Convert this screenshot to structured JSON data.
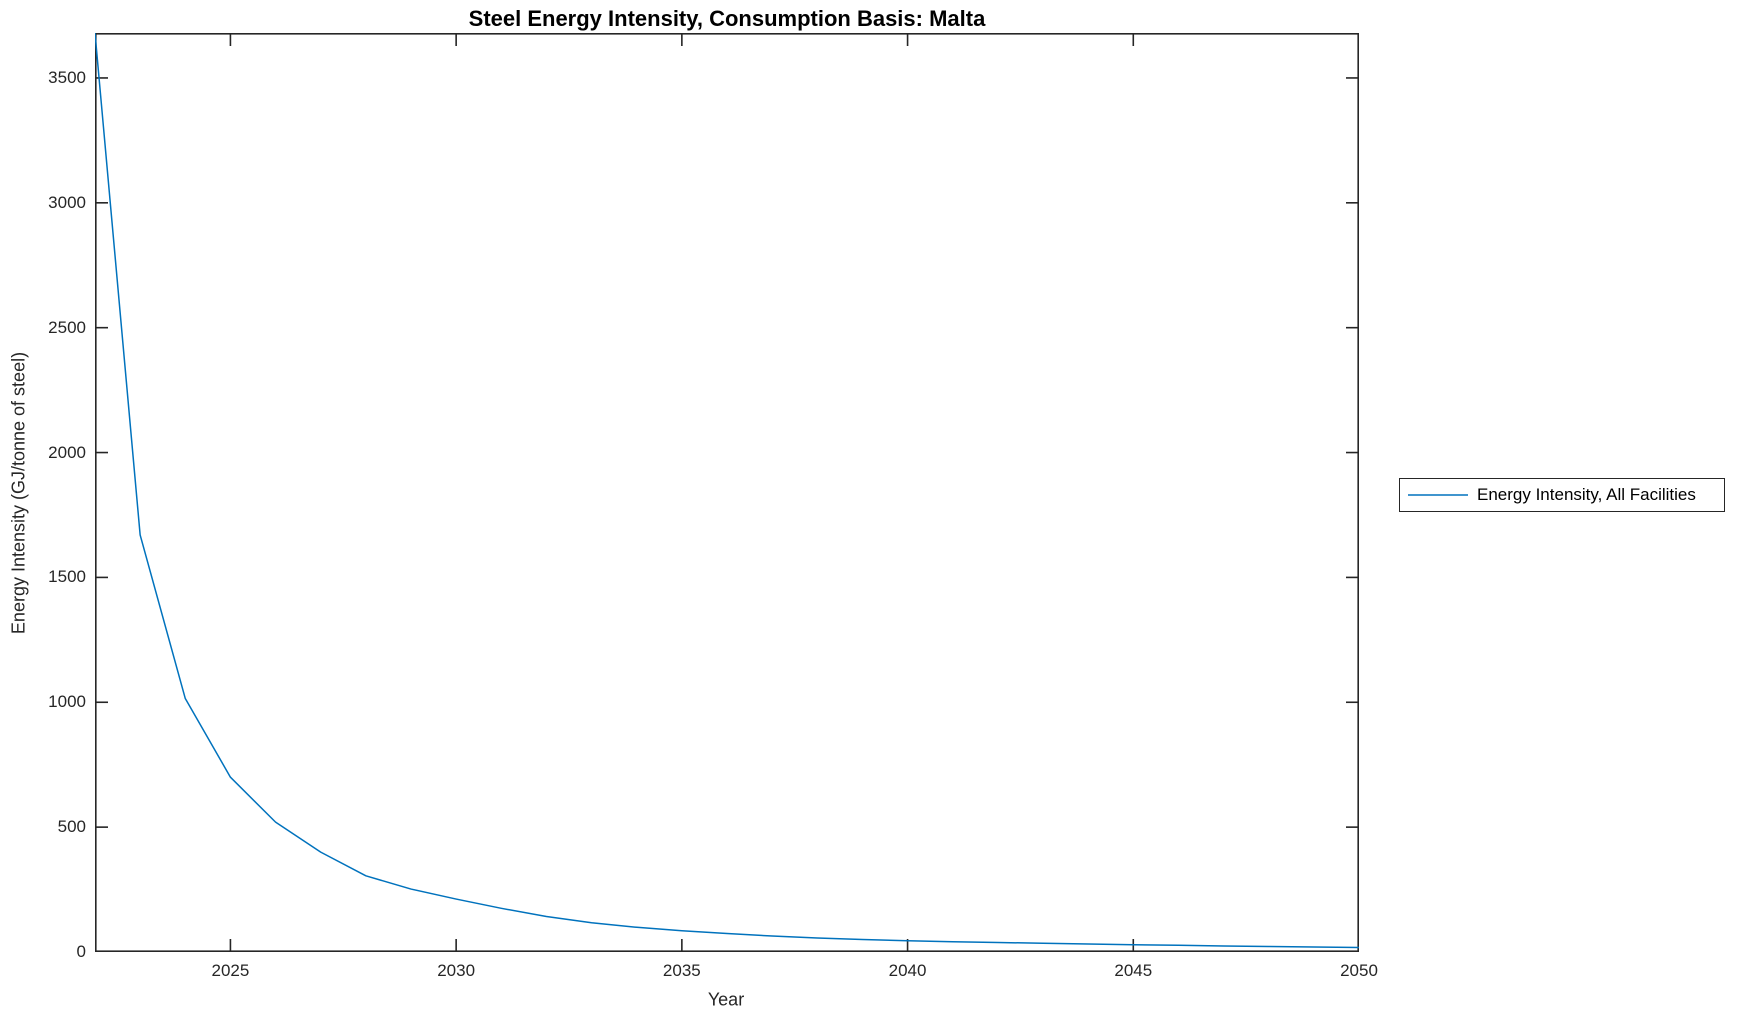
{
  "colors": {
    "line": "#0072BD",
    "axis": "#262626",
    "tick_text": "#262626",
    "title_text": "#000000",
    "background": "#ffffff"
  },
  "legend": {
    "label": "Energy Intensity, All Facilities",
    "position": "right-outside"
  },
  "chart_data": {
    "type": "line",
    "title": "Steel Energy Intensity, Consumption Basis: Malta",
    "xlabel": "Year",
    "ylabel": "Energy Intensity (GJ/tonne of steel)",
    "xlim": [
      2022,
      2050
    ],
    "ylim": [
      0,
      3680
    ],
    "xticks": [
      2025,
      2030,
      2035,
      2040,
      2045,
      2050
    ],
    "yticks": [
      0,
      500,
      1000,
      1500,
      2000,
      2500,
      3000,
      3500
    ],
    "grid": false,
    "box": true,
    "tick_direction": "in",
    "legend_position": "right-outside",
    "series": [
      {
        "name": "Energy Intensity, All Facilities",
        "color": "#0072BD",
        "x": [
          2022,
          2023,
          2024,
          2025,
          2026,
          2027,
          2028,
          2029,
          2030,
          2031,
          2032,
          2033,
          2034,
          2035,
          2036,
          2037,
          2038,
          2039,
          2040,
          2041,
          2042,
          2043,
          2044,
          2045,
          2046,
          2047,
          2048,
          2049,
          2050
        ],
        "y": [
          3680,
          1670,
          1015,
          700,
          520,
          400,
          305,
          252,
          212,
          175,
          142,
          117,
          99,
          85,
          74,
          64,
          56,
          50,
          45,
          41,
          38,
          35,
          32,
          29,
          27,
          24,
          22,
          20,
          18
        ]
      }
    ]
  }
}
